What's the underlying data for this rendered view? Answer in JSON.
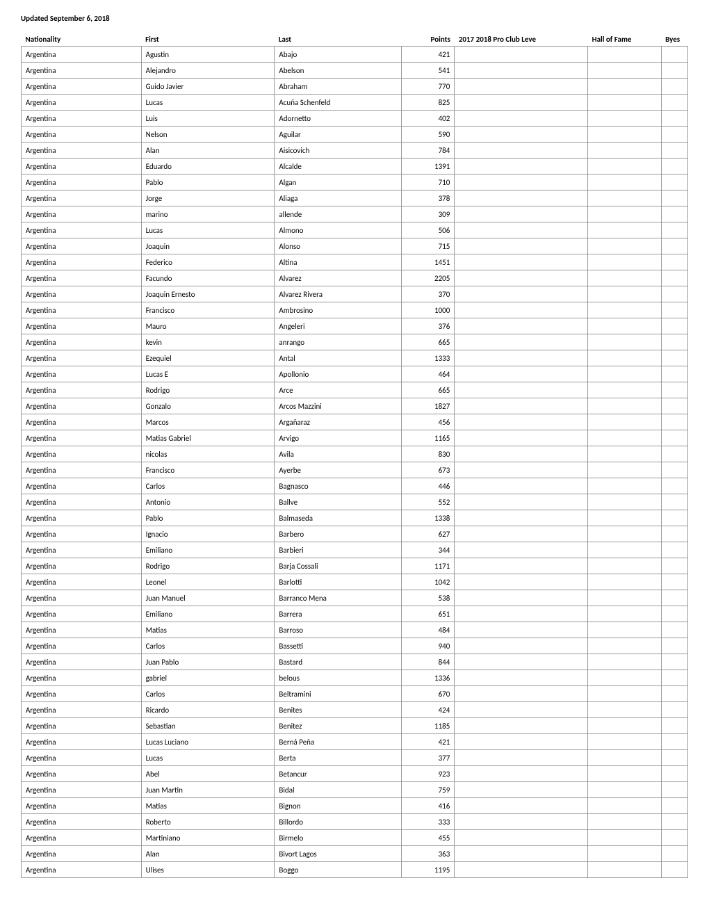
{
  "title": "Updated September 6, 2018",
  "table": {
    "columns": [
      {
        "key": "nationality",
        "label": "Nationality"
      },
      {
        "key": "first",
        "label": "First"
      },
      {
        "key": "last",
        "label": "Last"
      },
      {
        "key": "points",
        "label": "Points"
      },
      {
        "key": "pro",
        "label": "2017 2018 Pro Club Leve"
      },
      {
        "key": "hof",
        "label": "Hall of Fame"
      },
      {
        "key": "byes",
        "label": "Byes"
      }
    ],
    "rows": [
      {
        "nationality": "Argentina",
        "first": "Agustin",
        "last": "Abajo",
        "points": "421",
        "pro": "",
        "hof": "",
        "byes": ""
      },
      {
        "nationality": "Argentina",
        "first": "Alejandro",
        "last": "Abelson",
        "points": "541",
        "pro": "",
        "hof": "",
        "byes": ""
      },
      {
        "nationality": "Argentina",
        "first": "Guido Javier",
        "last": "Abraham",
        "points": "770",
        "pro": "",
        "hof": "",
        "byes": ""
      },
      {
        "nationality": "Argentina",
        "first": "Lucas",
        "last": "Acuña Schenfeld",
        "points": "825",
        "pro": "",
        "hof": "",
        "byes": ""
      },
      {
        "nationality": "Argentina",
        "first": "Luis",
        "last": "Adornetto",
        "points": "402",
        "pro": "",
        "hof": "",
        "byes": ""
      },
      {
        "nationality": "Argentina",
        "first": "Nelson",
        "last": "Aguilar",
        "points": "590",
        "pro": "",
        "hof": "",
        "byes": ""
      },
      {
        "nationality": "Argentina",
        "first": "Alan",
        "last": "Aisicovich",
        "points": "784",
        "pro": "",
        "hof": "",
        "byes": ""
      },
      {
        "nationality": "Argentina",
        "first": "Eduardo",
        "last": "Alcalde",
        "points": "1391",
        "pro": "",
        "hof": "",
        "byes": ""
      },
      {
        "nationality": "Argentina",
        "first": "Pablo",
        "last": "Algan",
        "points": "710",
        "pro": "",
        "hof": "",
        "byes": ""
      },
      {
        "nationality": "Argentina",
        "first": "Jorge",
        "last": "Aliaga",
        "points": "378",
        "pro": "",
        "hof": "",
        "byes": ""
      },
      {
        "nationality": "Argentina",
        "first": "marino",
        "last": "allende",
        "points": "309",
        "pro": "",
        "hof": "",
        "byes": ""
      },
      {
        "nationality": "Argentina",
        "first": "Lucas",
        "last": "Almono",
        "points": "506",
        "pro": "",
        "hof": "",
        "byes": ""
      },
      {
        "nationality": "Argentina",
        "first": "Joaquin",
        "last": "Alonso",
        "points": "715",
        "pro": "",
        "hof": "",
        "byes": ""
      },
      {
        "nationality": "Argentina",
        "first": "Federico",
        "last": "Altina",
        "points": "1451",
        "pro": "",
        "hof": "",
        "byes": ""
      },
      {
        "nationality": "Argentina",
        "first": "Facundo",
        "last": "Alvarez",
        "points": "2205",
        "pro": "",
        "hof": "",
        "byes": ""
      },
      {
        "nationality": "Argentina",
        "first": "Joaquin Ernesto",
        "last": "Alvarez Rivera",
        "points": "370",
        "pro": "",
        "hof": "",
        "byes": ""
      },
      {
        "nationality": "Argentina",
        "first": "Francisco",
        "last": "Ambrosino",
        "points": "1000",
        "pro": "",
        "hof": "",
        "byes": ""
      },
      {
        "nationality": "Argentina",
        "first": "Mauro",
        "last": "Angeleri",
        "points": "376",
        "pro": "",
        "hof": "",
        "byes": ""
      },
      {
        "nationality": "Argentina",
        "first": "kevin",
        "last": "anrango",
        "points": "665",
        "pro": "",
        "hof": "",
        "byes": ""
      },
      {
        "nationality": "Argentina",
        "first": "Ezequiel",
        "last": "Antal",
        "points": "1333",
        "pro": "",
        "hof": "",
        "byes": ""
      },
      {
        "nationality": "Argentina",
        "first": "Lucas E",
        "last": "Apollonio",
        "points": "464",
        "pro": "",
        "hof": "",
        "byes": ""
      },
      {
        "nationality": "Argentina",
        "first": "Rodrigo",
        "last": "Arce",
        "points": "665",
        "pro": "",
        "hof": "",
        "byes": ""
      },
      {
        "nationality": "Argentina",
        "first": "Gonzalo",
        "last": "Arcos Mazzini",
        "points": "1827",
        "pro": "",
        "hof": "",
        "byes": ""
      },
      {
        "nationality": "Argentina",
        "first": "Marcos",
        "last": "Argañaraz",
        "points": "456",
        "pro": "",
        "hof": "",
        "byes": ""
      },
      {
        "nationality": "Argentina",
        "first": "Matias Gabriel",
        "last": "Arvigo",
        "points": "1165",
        "pro": "",
        "hof": "",
        "byes": ""
      },
      {
        "nationality": "Argentina",
        "first": "nicolas",
        "last": "Avila",
        "points": "830",
        "pro": "",
        "hof": "",
        "byes": ""
      },
      {
        "nationality": "Argentina",
        "first": "Francisco",
        "last": "Ayerbe",
        "points": "673",
        "pro": "",
        "hof": "",
        "byes": ""
      },
      {
        "nationality": "Argentina",
        "first": "Carlos",
        "last": "Bagnasco",
        "points": "446",
        "pro": "",
        "hof": "",
        "byes": ""
      },
      {
        "nationality": "Argentina",
        "first": "Antonio",
        "last": "Ballve",
        "points": "552",
        "pro": "",
        "hof": "",
        "byes": ""
      },
      {
        "nationality": "Argentina",
        "first": "Pablo",
        "last": "Balmaseda",
        "points": "1338",
        "pro": "",
        "hof": "",
        "byes": ""
      },
      {
        "nationality": "Argentina",
        "first": "Ignacio",
        "last": "Barbero",
        "points": "627",
        "pro": "",
        "hof": "",
        "byes": ""
      },
      {
        "nationality": "Argentina",
        "first": "Emiliano",
        "last": "Barbieri",
        "points": "344",
        "pro": "",
        "hof": "",
        "byes": ""
      },
      {
        "nationality": "Argentina",
        "first": "Rodrigo",
        "last": "Barja Cossali",
        "points": "1171",
        "pro": "",
        "hof": "",
        "byes": ""
      },
      {
        "nationality": "Argentina",
        "first": "Leonel",
        "last": "Barlotti",
        "points": "1042",
        "pro": "",
        "hof": "",
        "byes": ""
      },
      {
        "nationality": "Argentina",
        "first": "Juan Manuel",
        "last": "Barranco Mena",
        "points": "538",
        "pro": "",
        "hof": "",
        "byes": ""
      },
      {
        "nationality": "Argentina",
        "first": "Emiliano",
        "last": "Barrera",
        "points": "651",
        "pro": "",
        "hof": "",
        "byes": ""
      },
      {
        "nationality": "Argentina",
        "first": "Matias",
        "last": "Barroso",
        "points": "484",
        "pro": "",
        "hof": "",
        "byes": ""
      },
      {
        "nationality": "Argentina",
        "first": "Carlos",
        "last": "Bassetti",
        "points": "940",
        "pro": "",
        "hof": "",
        "byes": ""
      },
      {
        "nationality": "Argentina",
        "first": "Juan Pablo",
        "last": "Bastard",
        "points": "844",
        "pro": "",
        "hof": "",
        "byes": ""
      },
      {
        "nationality": "Argentina",
        "first": "gabriel",
        "last": "belous",
        "points": "1336",
        "pro": "",
        "hof": "",
        "byes": ""
      },
      {
        "nationality": "Argentina",
        "first": "Carlos",
        "last": "Beltramini",
        "points": "670",
        "pro": "",
        "hof": "",
        "byes": ""
      },
      {
        "nationality": "Argentina",
        "first": "Ricardo",
        "last": "Benites",
        "points": "424",
        "pro": "",
        "hof": "",
        "byes": ""
      },
      {
        "nationality": "Argentina",
        "first": "Sebastian",
        "last": "Benitez",
        "points": "1185",
        "pro": "",
        "hof": "",
        "byes": ""
      },
      {
        "nationality": "Argentina",
        "first": "Lucas Luciano",
        "last": "Berná Peña",
        "points": "421",
        "pro": "",
        "hof": "",
        "byes": ""
      },
      {
        "nationality": "Argentina",
        "first": "Lucas",
        "last": "Berta",
        "points": "377",
        "pro": "",
        "hof": "",
        "byes": ""
      },
      {
        "nationality": "Argentina",
        "first": "Abel",
        "last": "Betancur",
        "points": "923",
        "pro": "",
        "hof": "",
        "byes": ""
      },
      {
        "nationality": "Argentina",
        "first": "Juan Martin",
        "last": "Bidal",
        "points": "759",
        "pro": "",
        "hof": "",
        "byes": ""
      },
      {
        "nationality": "Argentina",
        "first": "Matias",
        "last": "Bignon",
        "points": "416",
        "pro": "",
        "hof": "",
        "byes": ""
      },
      {
        "nationality": "Argentina",
        "first": "Roberto",
        "last": "Billordo",
        "points": "333",
        "pro": "",
        "hof": "",
        "byes": ""
      },
      {
        "nationality": "Argentina",
        "first": "Martiniano",
        "last": "Birmelo",
        "points": "455",
        "pro": "",
        "hof": "",
        "byes": ""
      },
      {
        "nationality": "Argentina",
        "first": "Alan",
        "last": "Bivort Lagos",
        "points": "363",
        "pro": "",
        "hof": "",
        "byes": ""
      },
      {
        "nationality": "Argentina",
        "first": "Ulises",
        "last": "Boggo",
        "points": "1195",
        "pro": "",
        "hof": "",
        "byes": ""
      }
    ]
  },
  "styling": {
    "border_color": "#999999",
    "background_color": "#ffffff",
    "text_color": "#000000",
    "font_family": "Calibri, Arial, sans-serif",
    "cell_font_size": 11,
    "title_font_size": 11,
    "title_font_weight": "bold",
    "header_font_weight": "bold",
    "points_align": "right"
  }
}
